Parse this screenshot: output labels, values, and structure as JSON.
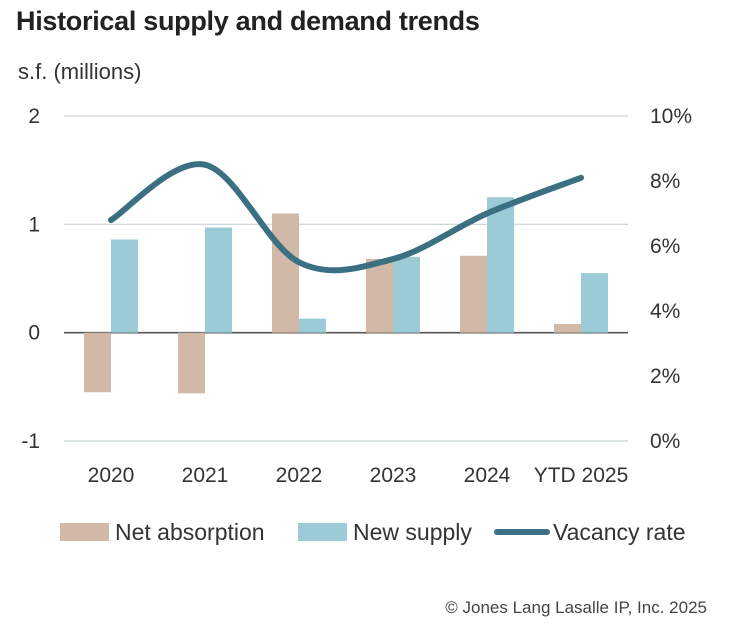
{
  "chart_data": {
    "type": "bar",
    "title": "Historical supply and demand trends",
    "ylabel": "s.f. (millions)",
    "categories": [
      "2020",
      "2021",
      "2022",
      "2023",
      "2024",
      "YTD 2025"
    ],
    "ylim": [
      -1,
      2
    ],
    "y_ticks": [
      "2",
      "1",
      "0",
      "-1"
    ],
    "y2lim": [
      0,
      10
    ],
    "y2_ticks": [
      "10%",
      "8%",
      "6%",
      "4%",
      "2%",
      "0%"
    ],
    "grid": true,
    "legend_position": "bottom",
    "series": [
      {
        "name": "Net absorption",
        "type": "bar",
        "color": "#d2b8a6",
        "values": [
          -0.55,
          -0.56,
          1.1,
          0.68,
          0.71,
          0.08
        ]
      },
      {
        "name": "New supply",
        "type": "bar",
        "color": "#9ccbd8",
        "values": [
          0.86,
          0.97,
          0.13,
          0.7,
          1.25,
          0.55
        ]
      },
      {
        "name": "Vacancy rate",
        "type": "line",
        "axis": "secondary",
        "color": "#3a7081",
        "values": [
          6.8,
          8.5,
          5.5,
          5.6,
          7.0,
          8.1
        ]
      }
    ],
    "source": "© Jones Lang Lasalle IP, Inc. 2025"
  }
}
